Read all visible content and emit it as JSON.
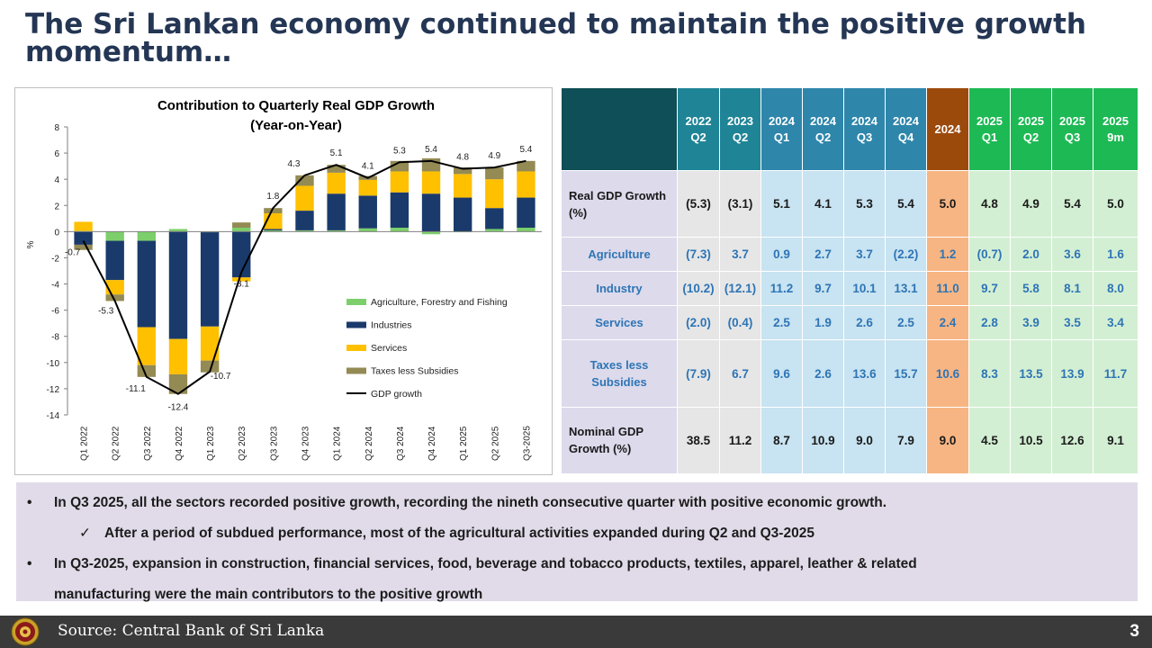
{
  "slide": {
    "title": "The Sri Lankan economy continued to maintain the positive growth momentum…"
  },
  "chart_data": {
    "type": "bar",
    "stacked": true,
    "title": "Contribution to Quarterly Real GDP Growth",
    "subtitle": "(Year-on-Year)",
    "ylabel": "%",
    "xlabel": "",
    "ylim": [
      -14,
      8
    ],
    "yticks": [
      -14,
      -12,
      -10,
      -8,
      -6,
      -4,
      -2,
      0,
      2,
      4,
      6,
      8
    ],
    "categories": [
      "Q1 2022",
      "Q2 2022",
      "Q3 2022",
      "Q4 2022",
      "Q1 2023",
      "Q2 2023",
      "Q3 2023",
      "Q4 2023",
      "Q1 2024",
      "Q2 2024",
      "Q3 2024",
      "Q4 2024",
      "Q1 2025",
      "Q2 2025",
      "Q3-2025"
    ],
    "series": [
      {
        "name": "Agriculture, Forestry and Fishing",
        "color": "#7ccf6a",
        "values": [
          0.05,
          -0.7,
          -0.7,
          0.2,
          -0.05,
          0.3,
          0.1,
          0.1,
          0.1,
          0.25,
          0.3,
          -0.2,
          -0.05,
          0.2,
          0.3
        ]
      },
      {
        "name": "Industries",
        "color": "#1a3a6b",
        "values": [
          -1.0,
          -3.0,
          -6.6,
          -8.2,
          -7.2,
          -3.5,
          0.1,
          1.5,
          2.8,
          2.5,
          2.7,
          2.9,
          2.6,
          1.6,
          2.3
        ]
      },
      {
        "name": "Services",
        "color": "#ffc000",
        "values": [
          0.7,
          -1.1,
          -2.9,
          -2.7,
          -2.6,
          -0.3,
          1.2,
          1.9,
          1.6,
          1.2,
          1.6,
          1.7,
          1.8,
          2.2,
          2.0
        ]
      },
      {
        "name": "Taxes less Subsidies",
        "color": "#948a54",
        "values": [
          -0.4,
          -0.5,
          -0.9,
          -1.5,
          -0.9,
          0.4,
          0.4,
          0.8,
          0.6,
          0.3,
          0.8,
          1.0,
          0.5,
          0.9,
          0.8
        ]
      }
    ],
    "line": {
      "name": "GDP growth",
      "color": "#000000",
      "values": [
        -0.7,
        -5.3,
        -11.1,
        -12.4,
        -10.7,
        -3.1,
        1.8,
        4.3,
        5.1,
        4.1,
        5.3,
        5.4,
        4.8,
        4.9,
        5.4
      ]
    },
    "legend_position": "bottom-right-inside",
    "grid": false
  },
  "table": {
    "corner": "",
    "columns": [
      {
        "line1": "2022",
        "line2": "Q2",
        "bg": "#1f8496"
      },
      {
        "line1": "2023",
        "line2": "Q2",
        "bg": "#1f8496"
      },
      {
        "line1": "2024",
        "line2": "Q1",
        "bg": "#2e86ab"
      },
      {
        "line1": "2024",
        "line2": "Q2",
        "bg": "#2e86ab"
      },
      {
        "line1": "2024",
        "line2": "Q3",
        "bg": "#2e86ab"
      },
      {
        "line1": "2024",
        "line2": "Q4",
        "bg": "#2e86ab"
      },
      {
        "line1": "2024",
        "line2": "",
        "bg": "#9b4a0c"
      },
      {
        "line1": "2025",
        "line2": "Q1",
        "bg": "#1db954"
      },
      {
        "line1": "2025",
        "line2": "Q2",
        "bg": "#1db954"
      },
      {
        "line1": "2025",
        "line2": "Q3",
        "bg": "#1db954"
      },
      {
        "line1": "2025",
        "line2": "9m",
        "bg": "#1db954"
      }
    ],
    "column_body_bg": [
      "#e6e6e6",
      "#e6e6e6",
      "#c8e3f1",
      "#c8e3f1",
      "#c8e3f1",
      "#c8e3f1",
      "#f7b583",
      "#d3efd3",
      "#d3efd3",
      "#d3efd3",
      "#d3efd3"
    ],
    "rows": [
      {
        "label": "Real GDP Growth (%)",
        "sub": false,
        "values": [
          "(5.3)",
          "(3.1)",
          "5.1",
          "4.1",
          "5.3",
          "5.4",
          "5.0",
          "4.8",
          "4.9",
          "5.4",
          "5.0"
        ]
      },
      {
        "label": "Agriculture",
        "sub": true,
        "values": [
          "(7.3)",
          "3.7",
          "0.9",
          "2.7",
          "3.7",
          "(2.2)",
          "1.2",
          "(0.7)",
          "2.0",
          "3.6",
          "1.6"
        ]
      },
      {
        "label": "Industry",
        "sub": true,
        "values": [
          "(10.2)",
          "(12.1)",
          "11.2",
          "9.7",
          "10.1",
          "13.1",
          "11.0",
          "9.7",
          "5.8",
          "8.1",
          "8.0"
        ]
      },
      {
        "label": "Services",
        "sub": true,
        "values": [
          "(2.0)",
          "(0.4)",
          "2.5",
          "1.9",
          "2.6",
          "2.5",
          "2.4",
          "2.8",
          "3.9",
          "3.5",
          "3.4"
        ]
      },
      {
        "label": "Taxes less Subsidies",
        "sub": true,
        "values": [
          "(7.9)",
          "6.7",
          "9.6",
          "2.6",
          "13.6",
          "15.7",
          "10.6",
          "8.3",
          "13.5",
          "13.9",
          "11.7"
        ]
      },
      {
        "label": "Nominal GDP Growth (%)",
        "sub": false,
        "values": [
          "38.5",
          "11.2",
          "8.7",
          "10.9",
          "9.0",
          "7.9",
          "9.0",
          "4.5",
          "10.5",
          "12.6",
          "9.1"
        ]
      }
    ],
    "label_bg": "#dcdaeb",
    "corner_bg": "#0f4f57"
  },
  "notes": {
    "bullet1": "In Q3 2025, all the sectors recorded positive growth, recording the nineth consecutive quarter with positive economic growth.",
    "sub1": "After a period of subdued performance, most of the agricultural activities expanded during Q2 and Q3-2025",
    "bullet2_line1": "In Q3-2025, expansion in construction, financial services, food, beverage and tobacco products, textiles, apparel, leather & related",
    "bullet2_line2": "manufacturing were the main contributors to the positive growth",
    "bullet_char": "•",
    "check_char": "✓"
  },
  "footer": {
    "source": "Source: Central Bank of Sri Lanka",
    "page": "3"
  }
}
